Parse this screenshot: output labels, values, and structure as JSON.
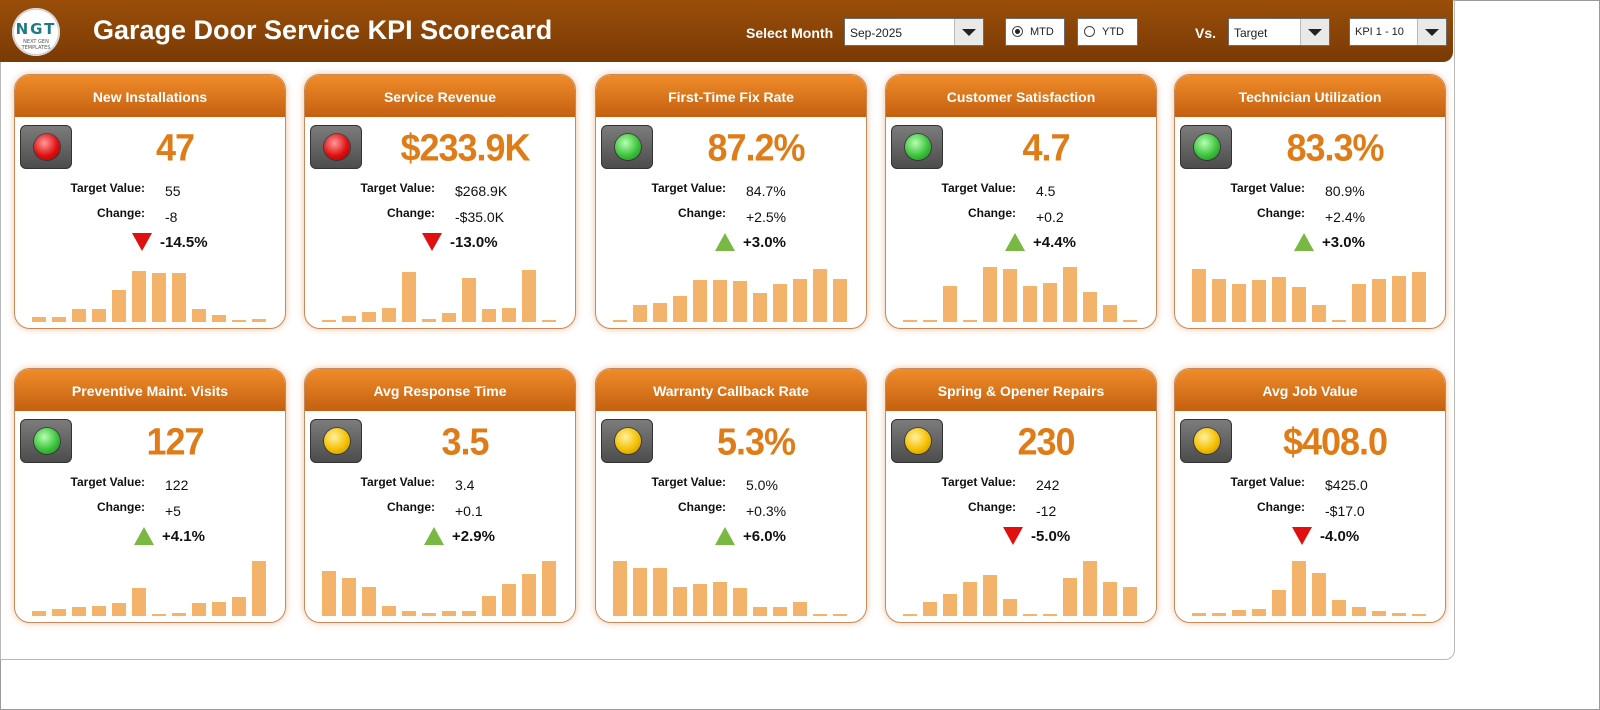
{
  "header": {
    "title": "Garage Door Service KPI Scorecard",
    "logo_text": "NGT",
    "logo_sub": "NEXT GEN TEMPLATES",
    "select_month_label": "Select Month",
    "month_value": "Sep-2025",
    "mtd_label": "MTD",
    "ytd_label": "YTD",
    "mode_selected": "MTD",
    "vs_label": "Vs.",
    "vs_value": "Target",
    "kpi_range_value": "KPI 1 - 10"
  },
  "colors": {
    "header_brown": "#8a4408",
    "card_header_orange": "#e07c18",
    "value_orange": "#e07c18",
    "spark_bar": "#f4b36a",
    "light_red": "#e01010",
    "light_green": "#3cc43c",
    "light_yellow": "#f5c000",
    "arrow_down": "#e01010",
    "arrow_up": "#7ab844"
  },
  "kpis": [
    {
      "title": "New Installations",
      "light": "red",
      "value": "47",
      "target_label": "Target Value:",
      "target": "55",
      "change_label": "Change:",
      "change": "-8",
      "direction": "down",
      "pct": "-14.5%",
      "spark": [
        0.08,
        0.08,
        0.22,
        0.22,
        0.55,
        0.88,
        0.85,
        0.85,
        0.22,
        0.12,
        0.02,
        0.05
      ]
    },
    {
      "title": "Service Revenue",
      "light": "red",
      "value": "$233.9K",
      "target_label": "Target Value:",
      "target": "$268.9K",
      "change_label": "Change:",
      "change": "-$35.0K",
      "direction": "down",
      "pct": "-13.0%",
      "spark": [
        0.02,
        0.1,
        0.18,
        0.25,
        0.86,
        0.05,
        0.15,
        0.76,
        0.22,
        0.25,
        0.9,
        0
      ]
    },
    {
      "title": "First-Time Fix Rate",
      "light": "green",
      "value": "87.2%",
      "target_label": "Target Value:",
      "target": "84.7%",
      "change_label": "Change:",
      "change": "+2.5%",
      "direction": "up",
      "pct": "+3.0%",
      "spark": [
        0.02,
        0.3,
        0.33,
        0.45,
        0.72,
        0.72,
        0.7,
        0.5,
        0.66,
        0.75,
        0.92,
        0.75
      ]
    },
    {
      "title": "Customer Satisfaction",
      "light": "green",
      "value": "4.7",
      "target_label": "Target Value:",
      "target": "4.5",
      "change_label": "Change:",
      "change": "+0.2",
      "direction": "up",
      "pct": "+4.4%",
      "spark": [
        0.02,
        0.02,
        0.62,
        0.02,
        0.95,
        0.92,
        0.62,
        0.68,
        0.95,
        0.52,
        0.3,
        0
      ]
    },
    {
      "title": "Technician Utilization",
      "light": "green",
      "value": "83.3%",
      "target_label": "Target Value:",
      "target": "80.9%",
      "change_label": "Change:",
      "change": "+2.4%",
      "direction": "up",
      "pct": "+3.0%",
      "spark": [
        0.92,
        0.75,
        0.65,
        0.72,
        0.78,
        0.6,
        0.3,
        0.02,
        0.65,
        0.75,
        0.8,
        0.86
      ]
    },
    {
      "title": "Preventive Maint. Visits",
      "light": "green",
      "value": "127",
      "target_label": "Target Value:",
      "target": "122",
      "change_label": "Change:",
      "change": "+5",
      "direction": "up",
      "pct": "+4.1%",
      "spark": [
        0.08,
        0.12,
        0.15,
        0.18,
        0.22,
        0.48,
        0.02,
        0.05,
        0.22,
        0.25,
        0.32,
        0.95
      ]
    },
    {
      "title": "Avg Response Time",
      "light": "yellow",
      "value": "3.5",
      "target_label": "Target Value:",
      "target": "3.4",
      "change_label": "Change:",
      "change": "+0.1",
      "direction": "up",
      "pct": "+2.9%",
      "spark": [
        0.78,
        0.65,
        0.5,
        0.18,
        0.08,
        0.05,
        0.08,
        0.08,
        0.35,
        0.55,
        0.72,
        0.95
      ]
    },
    {
      "title": "Warranty Callback Rate",
      "light": "yellow",
      "value": "5.3%",
      "target_label": "Target Value:",
      "target": "5.0%",
      "change_label": "Change:",
      "change": "+0.3%",
      "direction": "up",
      "pct": "+6.0%",
      "spark": [
        0.95,
        0.82,
        0.82,
        0.5,
        0.55,
        0.58,
        0.48,
        0.15,
        0.15,
        0.25,
        0.02,
        0
      ]
    },
    {
      "title": "Spring & Opener Repairs",
      "light": "yellow",
      "value": "230",
      "target_label": "Target Value:",
      "target": "242",
      "change_label": "Change:",
      "change": "-12",
      "direction": "down",
      "pct": "-5.0%",
      "spark": [
        0.02,
        0.25,
        0.38,
        0.58,
        0.7,
        0.3,
        0.02,
        0.02,
        0.65,
        0.95,
        0.58,
        0.5
      ]
    },
    {
      "title": "Avg Job Value",
      "light": "yellow",
      "value": "$408.0",
      "target_label": "Target Value:",
      "target": "$425.0",
      "change_label": "Change:",
      "change": "-$17.0",
      "direction": "down",
      "pct": "-4.0%",
      "spark": [
        0.05,
        0.05,
        0.1,
        0.12,
        0.45,
        0.95,
        0.75,
        0.28,
        0.15,
        0.08,
        0.05,
        0
      ]
    }
  ]
}
